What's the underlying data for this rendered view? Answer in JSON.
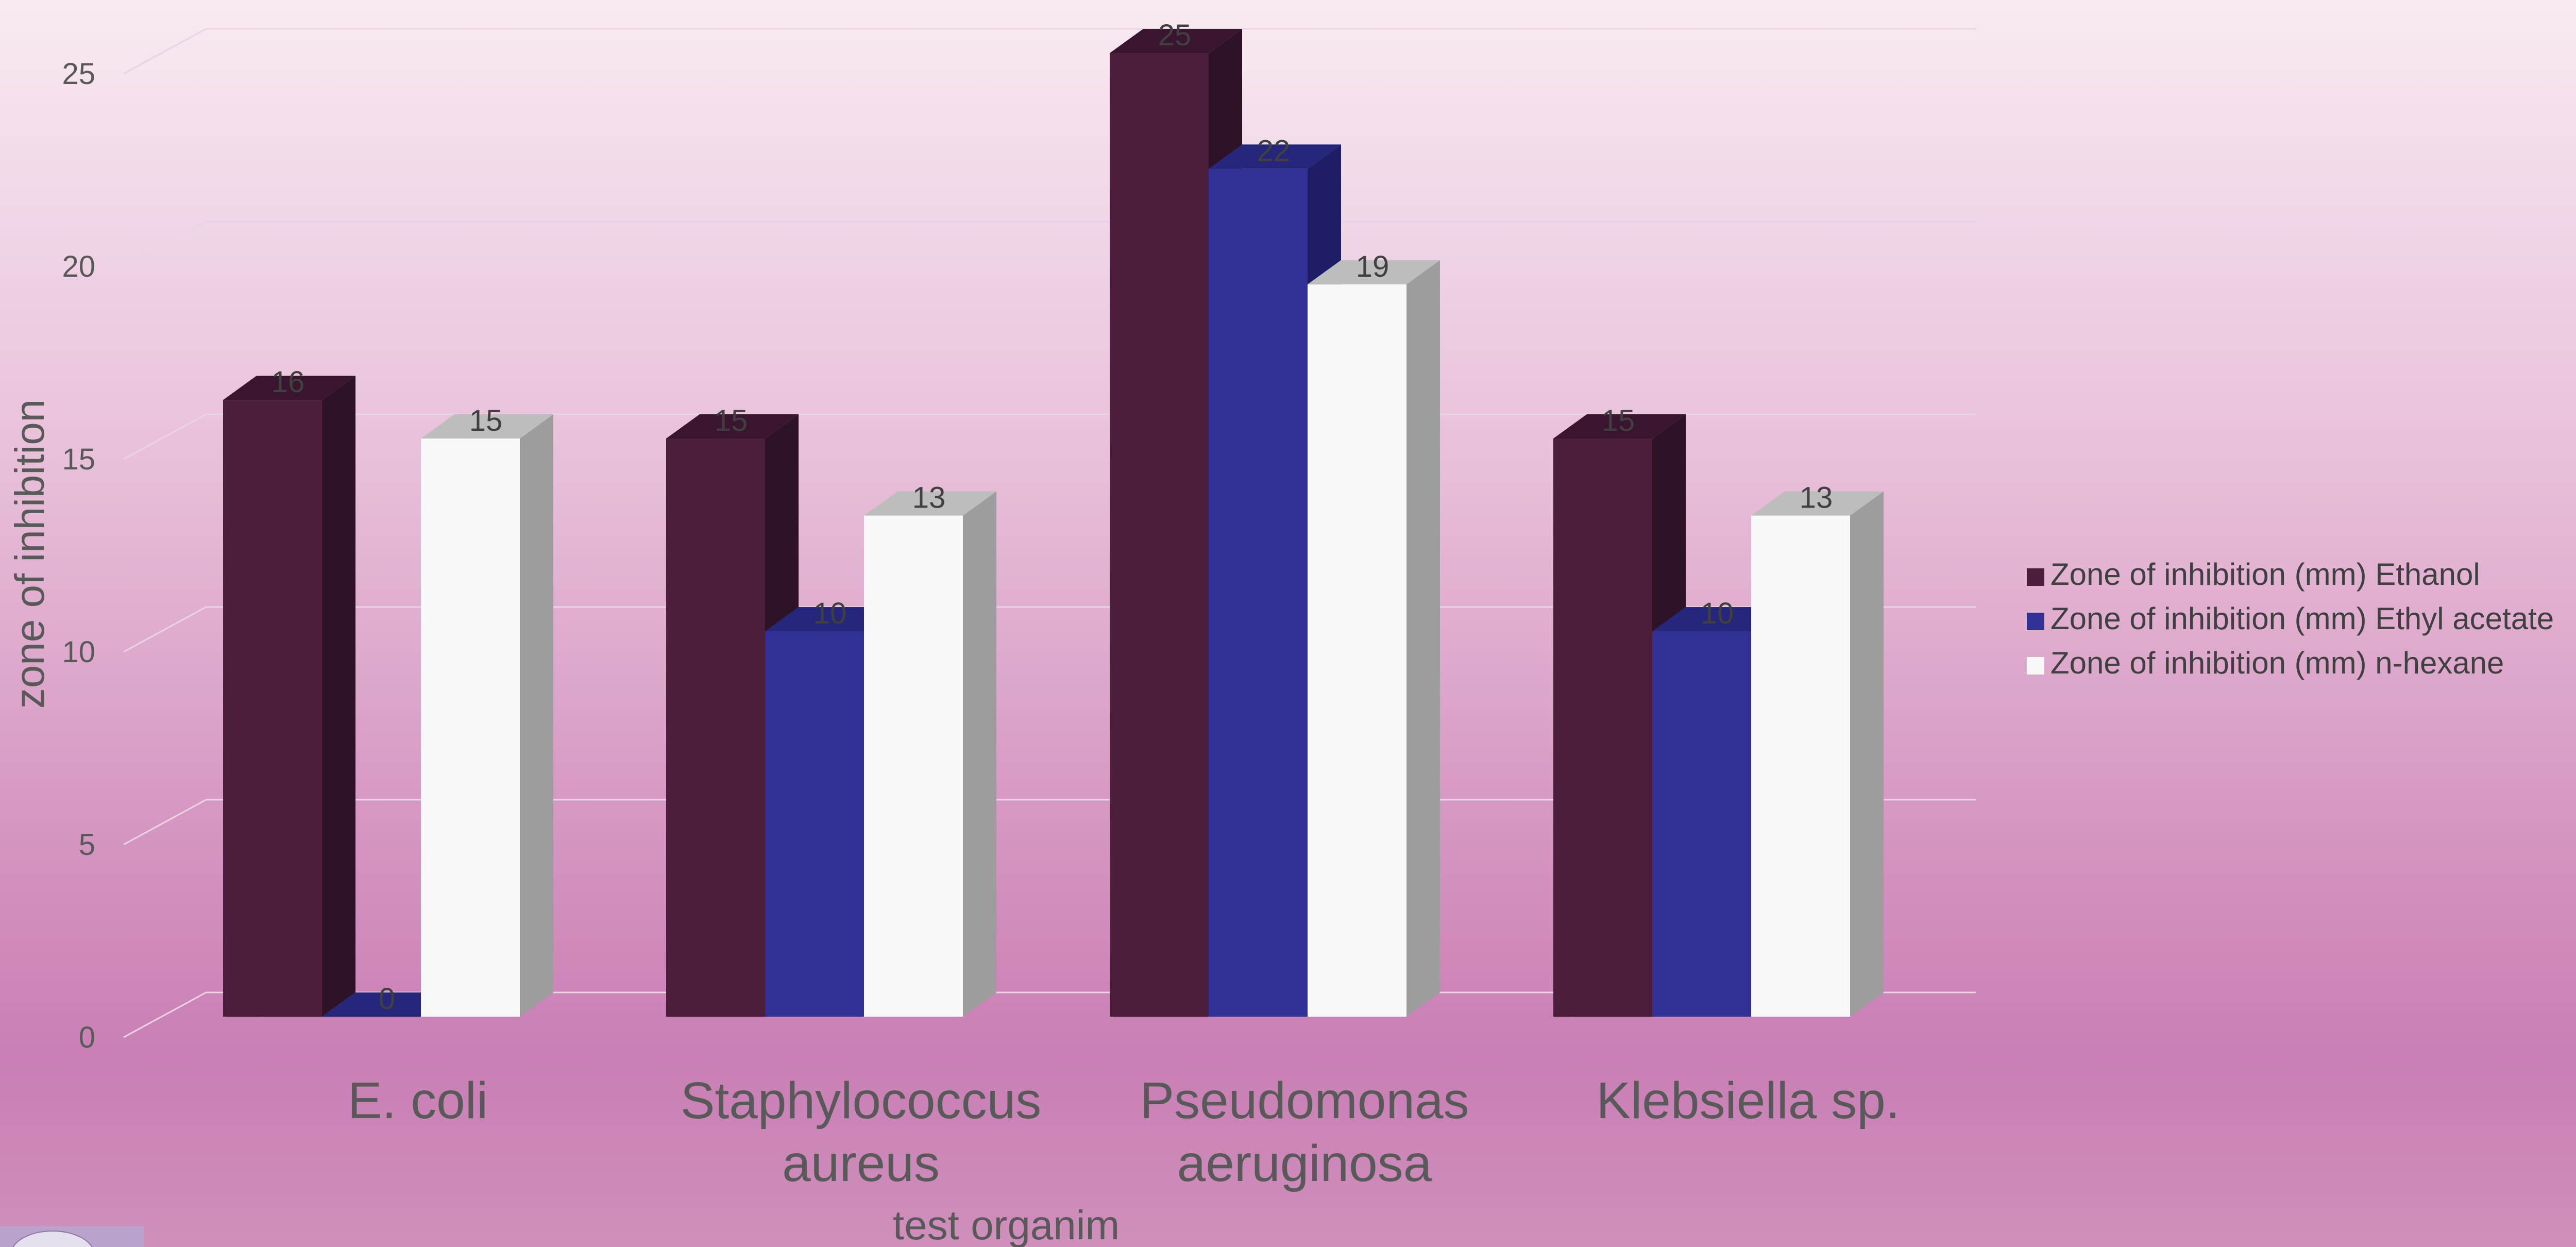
{
  "chart_data": {
    "type": "bar",
    "title": "",
    "xlabel": "test organim",
    "ylabel": "zone of inhibition",
    "ylim": [
      0,
      25
    ],
    "yticks": [
      0,
      5,
      10,
      15,
      20,
      25
    ],
    "grid": true,
    "legend_position": "right",
    "categories": [
      [
        "E. coli"
      ],
      [
        "Staphylococcus",
        "aureus"
      ],
      [
        "Pseudomonas",
        "aeruginosa"
      ],
      [
        "Klebsiella sp."
      ]
    ],
    "series": [
      {
        "name": "Zone of inhibition (mm) Ethanol",
        "values": [
          16,
          15,
          25,
          15
        ],
        "color": "#4b1e3c",
        "side_color": "#2e1226",
        "top_color": "#3a1530"
      },
      {
        "name": "Zone of inhibition (mm) Ethyl acetate",
        "values": [
          0,
          10,
          22,
          10
        ],
        "color": "#303095",
        "side_color": "#1e1e66",
        "top_color": "#26267a"
      },
      {
        "name": "Zone of inhibition (mm) n-hexane",
        "values": [
          15,
          13,
          19,
          13
        ],
        "color": "#f8f8f8",
        "side_color": "#9d9d9d",
        "top_color": "#bdbdbd"
      }
    ]
  }
}
